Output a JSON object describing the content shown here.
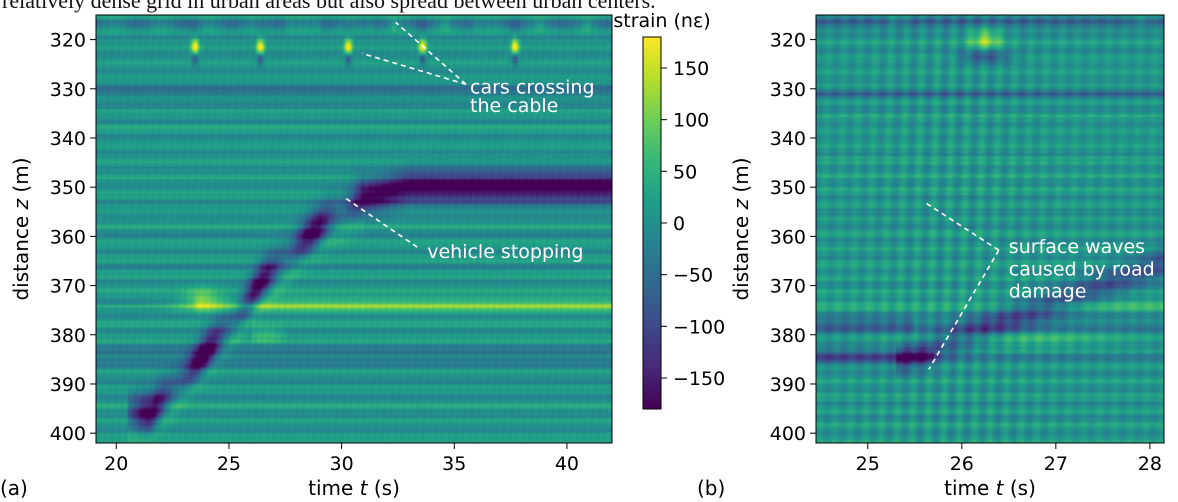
{
  "caption": "relatively dense grid in urban areas but also spread between urban centers.",
  "colors": {
    "viridis": [
      "#440154",
      "#482878",
      "#3e4989",
      "#31688e",
      "#26828e",
      "#1f9e89",
      "#35b779",
      "#6ece58",
      "#b5de2b",
      "#fde725"
    ]
  },
  "chart_data": [
    {
      "type": "heatmap",
      "panel_label": "(a)",
      "xlabel_text": "time ",
      "xlabel_var": "t",
      "xlabel_unit": " (s)",
      "ylabel_text": "distance ",
      "ylabel_var": "z",
      "ylabel_unit": " (m)",
      "xlim": [
        19.1,
        42.0
      ],
      "ylim": [
        402,
        315
      ],
      "xticks": [
        20,
        25,
        30,
        35,
        40
      ],
      "xtick_labels": [
        "20",
        "25",
        "30",
        "35",
        "40"
      ],
      "yticks": [
        320,
        330,
        340,
        350,
        360,
        370,
        380,
        390,
        400
      ],
      "ytick_labels": [
        "320",
        "330",
        "340",
        "350",
        "360",
        "370",
        "380",
        "390",
        "400"
      ],
      "features": {
        "car_crossings_t": [
          23.5,
          26.4,
          30.3,
          33.6,
          37.7
        ],
        "car_crossing_z": [
          321.5,
          324
        ],
        "vehicle_track_t": [
          21.5,
          23.5,
          25.0,
          26.5,
          28.0,
          29.5,
          31.0,
          33.0,
          42.0
        ],
        "vehicle_track_z": [
          396,
          386,
          378,
          369,
          362,
          356,
          352,
          350,
          350
        ],
        "bright_band_z": 374,
        "dark_band_z": [
          330.5,
          384.5
        ]
      },
      "annotations": [
        {
          "text": "cars crossing",
          "t": 35.7,
          "z": 329.5
        },
        {
          "text": "the cable",
          "t": 35.7,
          "z": 333.3
        },
        {
          "text": "vehicle stopping",
          "t": 33.8,
          "z": 363
        }
      ]
    },
    {
      "type": "heatmap",
      "panel_label": "(b)",
      "xlabel_text": "time ",
      "xlabel_var": "t",
      "xlabel_unit": " (s)",
      "ylabel_text": "distance ",
      "ylabel_var": "z",
      "ylabel_unit": " (m)",
      "xlim": [
        24.45,
        28.15
      ],
      "ylim": [
        402,
        315
      ],
      "xticks": [
        25,
        26,
        27,
        28
      ],
      "xtick_labels": [
        "25",
        "26",
        "27",
        "28"
      ],
      "yticks": [
        320,
        330,
        340,
        350,
        360,
        370,
        380,
        390,
        400
      ],
      "ytick_labels": [
        "320",
        "330",
        "340",
        "350",
        "360",
        "370",
        "380",
        "390",
        "400"
      ],
      "features": {
        "dark_band_z": [
          378,
          384.5
        ],
        "wave_t": [
          25.6,
          26.3
        ],
        "hot_spot": {
          "t": 26.25,
          "z": 320
        }
      },
      "annotations": [
        {
          "text": "surface waves",
          "t": 26.5,
          "z": 362
        },
        {
          "text": "caused by road",
          "t": 26.5,
          "z": 366.5
        },
        {
          "text": "damage",
          "t": 26.5,
          "z": 371
        }
      ]
    }
  ],
  "colorbar": {
    "title": "strain (nε)",
    "range": [
      -180,
      180
    ],
    "ticks": [
      150,
      100,
      50,
      0,
      -50,
      -100,
      -150
    ],
    "tick_labels": [
      "150",
      "100",
      "50",
      "0",
      "−50",
      "−100",
      "−150"
    ]
  }
}
